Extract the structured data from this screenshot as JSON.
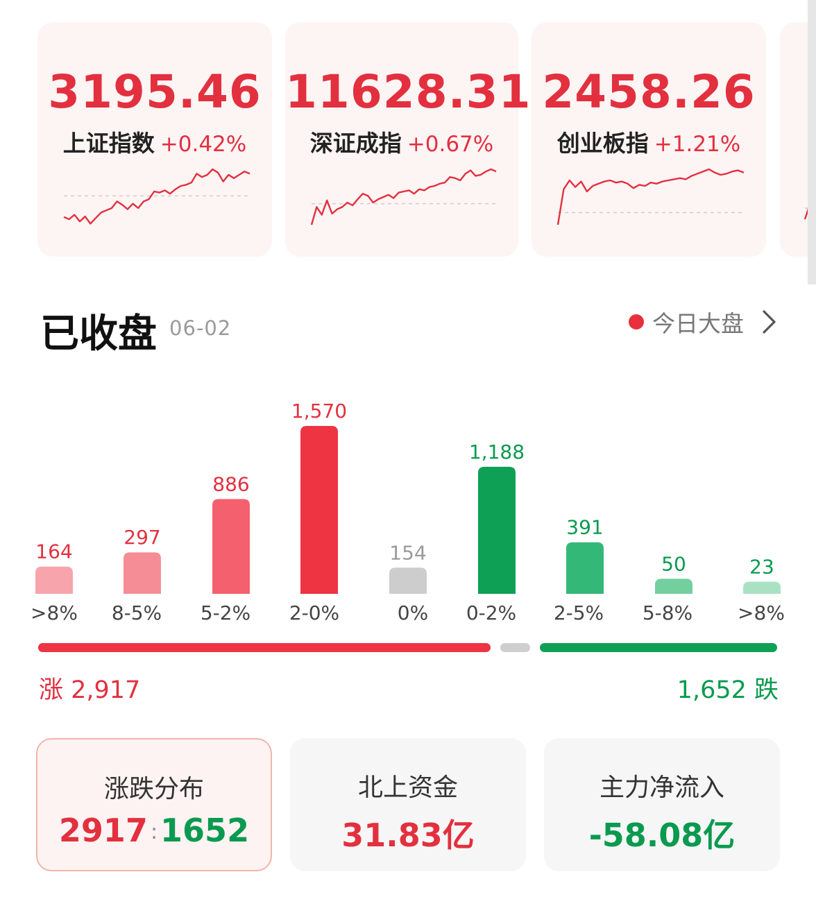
{
  "indices": [
    {
      "value": "3195.46",
      "name": "上证指数",
      "change": "+0.42%",
      "spark": [
        0.14,
        0.1,
        0.18,
        0.06,
        0.15,
        0.02,
        0.12,
        0.22,
        0.26,
        0.3,
        0.42,
        0.36,
        0.28,
        0.38,
        0.3,
        0.42,
        0.46,
        0.6,
        0.58,
        0.62,
        0.56,
        0.64,
        0.7,
        0.72,
        0.76,
        0.92,
        0.86,
        0.9,
        1.0,
        0.94,
        0.78,
        0.9,
        0.84,
        0.9,
        0.96,
        0.92
      ],
      "base": 0.52
    },
    {
      "value": "11628.31",
      "name": "深证成指",
      "change": "+0.67%",
      "spark": [
        0.0,
        0.32,
        0.18,
        0.44,
        0.2,
        0.28,
        0.32,
        0.4,
        0.35,
        0.46,
        0.56,
        0.52,
        0.4,
        0.46,
        0.5,
        0.54,
        0.48,
        0.58,
        0.6,
        0.62,
        0.56,
        0.64,
        0.62,
        0.68,
        0.7,
        0.74,
        0.76,
        0.86,
        0.84,
        0.8,
        0.92,
        0.98,
        0.88,
        0.9,
        0.96,
        1.0,
        0.96
      ],
      "base": 0.38
    },
    {
      "value": "2458.26",
      "name": "创业板指",
      "change": "+1.21%",
      "spark": [
        0.0,
        0.64,
        0.8,
        0.68,
        0.78,
        0.6,
        0.7,
        0.74,
        0.78,
        0.8,
        0.76,
        0.78,
        0.74,
        0.66,
        0.72,
        0.7,
        0.76,
        0.74,
        0.78,
        0.8,
        0.82,
        0.84,
        0.82,
        0.88,
        0.92,
        0.96,
        1.0,
        0.94,
        0.9,
        0.92,
        0.96,
        0.98,
        0.94
      ],
      "base": 0.22
    },
    {
      "value": "",
      "name": "",
      "change": "",
      "spark": [
        0.1,
        0.4,
        0.3
      ],
      "base": 0.3
    }
  ],
  "section": {
    "title": "已收盘",
    "date": "06-02",
    "link_label": "今日大盘"
  },
  "chart_data": {
    "type": "bar",
    "categories": [
      ">8%",
      "8-5%",
      "5-2%",
      "2-0%",
      "0%",
      "0-2%",
      "2-5%",
      "5-8%",
      ">8%"
    ],
    "values": [
      164,
      297,
      886,
      1570,
      154,
      1188,
      391,
      50,
      23
    ],
    "value_labels": [
      "164",
      "297",
      "886",
      "1,570",
      "154",
      "1,188",
      "391",
      "50",
      "23"
    ],
    "colors": [
      "#f7a4ad",
      "#f58d97",
      "#f4606d",
      "#ee3342",
      "#cdcdcd",
      "#0ea055",
      "#34b878",
      "#74cf9e",
      "#a9e2c3"
    ],
    "label_colors": [
      "#e2303f",
      "#e2303f",
      "#e2303f",
      "#e2303f",
      "#9a9a9a",
      "#0a9a4f",
      "#0a9a4f",
      "#0a9a4f",
      "#0a9a4f"
    ],
    "ylim": [
      0,
      1570
    ]
  },
  "summary": {
    "up_label": "涨 2,917",
    "down_label": "1,652 跌"
  },
  "stats": [
    {
      "title": "涨跌分布",
      "up": "2917",
      "sep": ":",
      "down": "1652"
    },
    {
      "title": "北上资金",
      "value": "31.83亿"
    },
    {
      "title": "主力净流入",
      "value": "-58.08亿"
    }
  ]
}
